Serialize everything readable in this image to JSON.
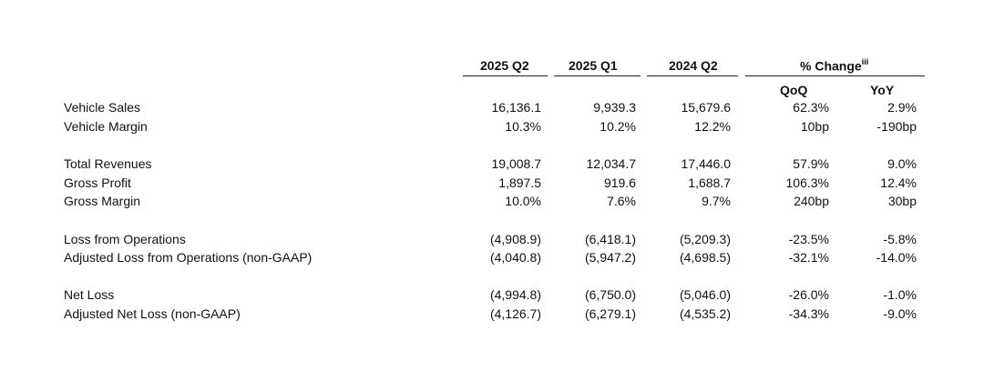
{
  "columns": {
    "c2025q2": "2025 Q2",
    "c2025q1": "2025 Q1",
    "c2024q2": "2024 Q2",
    "pct_change": "% Change",
    "pct_change_sup": "iii",
    "qoq": "QoQ",
    "yoy": "YoY"
  },
  "rows": [
    {
      "label": "Vehicle Sales",
      "v1": "16,136.1",
      "v2": "9,939.3",
      "v3": "15,679.6",
      "qoq": "62.3%",
      "yoy": "2.9%"
    },
    {
      "label": "Vehicle Margin",
      "v1": "10.3%",
      "v2": "10.2%",
      "v3": "12.2%",
      "qoq": "10bp",
      "yoy": "-190bp"
    },
    {
      "label": "Total Revenues",
      "v1": "19,008.7",
      "v2": "12,034.7",
      "v3": "17,446.0",
      "qoq": "57.9%",
      "yoy": "9.0%"
    },
    {
      "label": "Gross Profit",
      "v1": "1,897.5",
      "v2": "919.6",
      "v3": "1,688.7",
      "qoq": "106.3%",
      "yoy": "12.4%"
    },
    {
      "label": "Gross Margin",
      "v1": "10.0%",
      "v2": "7.6%",
      "v3": "9.7%",
      "qoq": "240bp",
      "yoy": "30bp"
    },
    {
      "label": "Loss from Operations",
      "v1": "(4,908.9)",
      "v2": "(6,418.1)",
      "v3": "(5,209.3)",
      "qoq": "-23.5%",
      "yoy": "-5.8%"
    },
    {
      "label": "Adjusted Loss from Operations (non-GAAP)",
      "v1": "(4,040.8)",
      "v2": "(5,947.2)",
      "v3": "(4,698.5)",
      "qoq": "-32.1%",
      "yoy": "-14.0%"
    },
    {
      "label": "Net Loss",
      "v1": "(4,994.8)",
      "v2": "(6,750.0)",
      "v3": "(5,046.0)",
      "qoq": "-26.0%",
      "yoy": "-1.0%"
    },
    {
      "label": "Adjusted Net Loss (non-GAAP)",
      "v1": "(4,126.7)",
      "v2": "(6,279.1)",
      "v3": "(4,535.2)",
      "qoq": "-34.3%",
      "yoy": "-9.0%"
    }
  ]
}
